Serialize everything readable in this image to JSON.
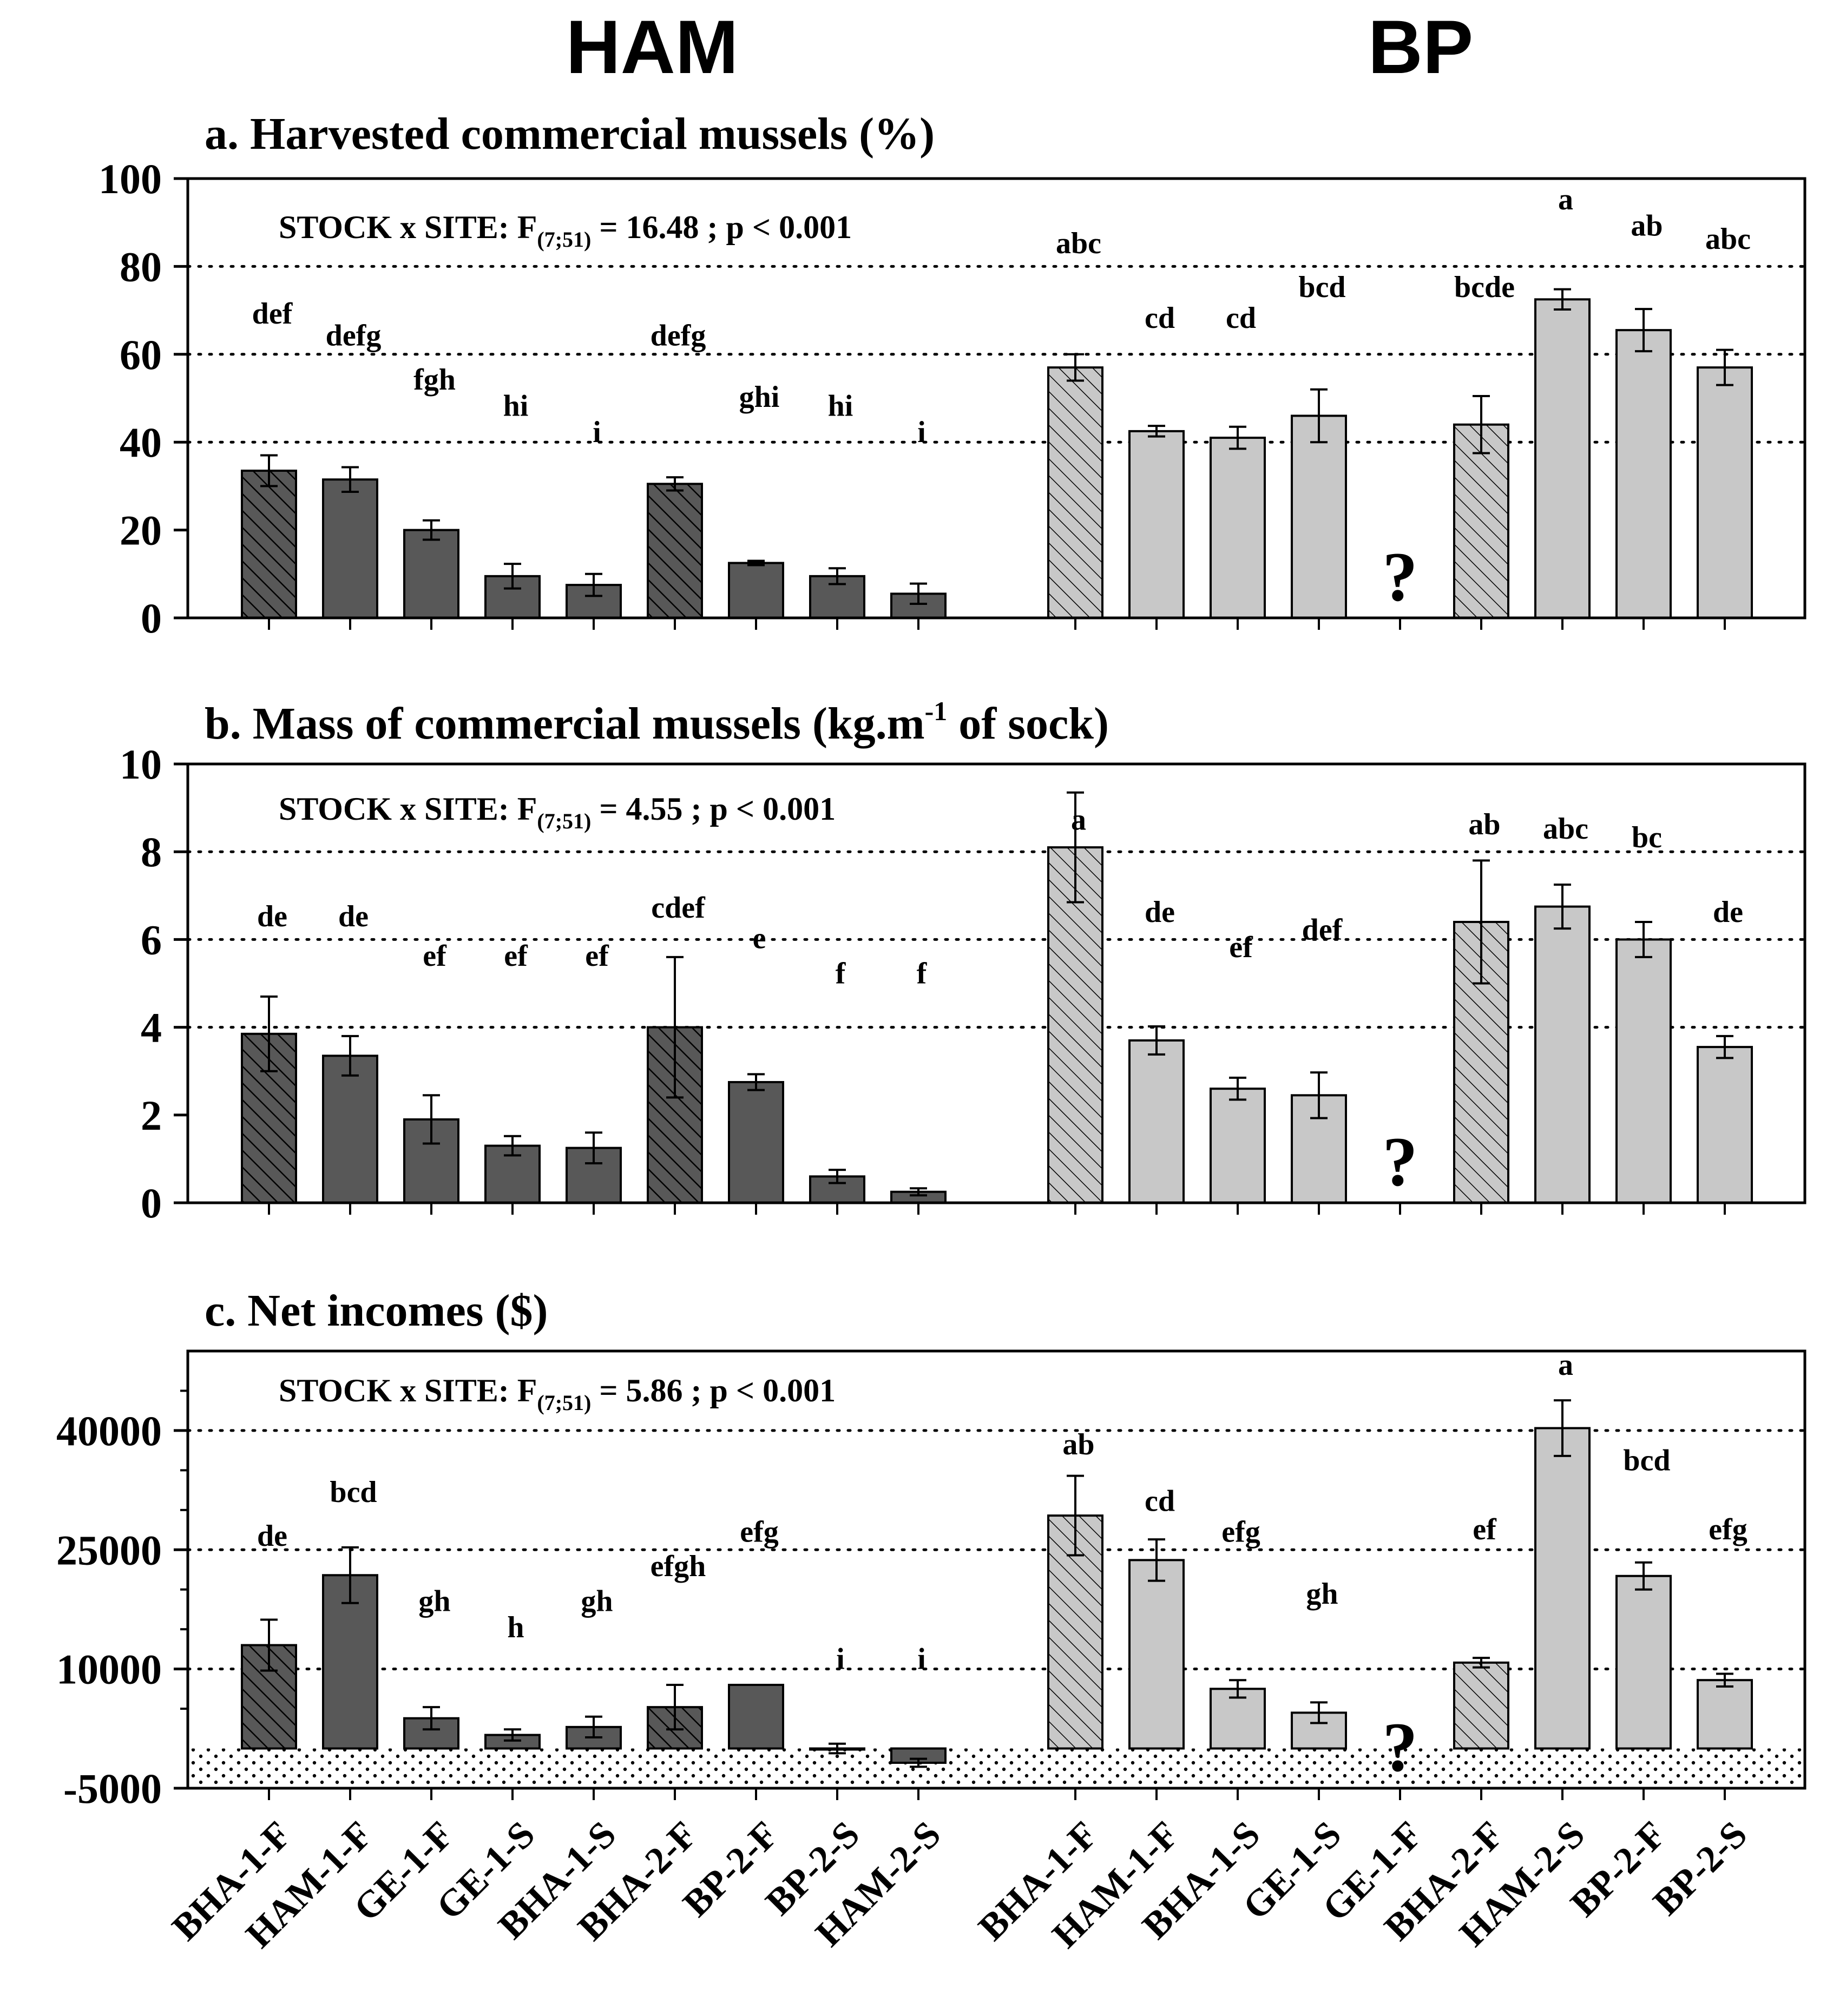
{
  "site_titles": {
    "left": "HAM",
    "right": "BP"
  },
  "colors": {
    "ham_bar": "#585858",
    "bp_bar": "#c8c8c8",
    "frame": "#000000"
  },
  "hatching": {
    "note": "hatched bars",
    "hatched_categories": [
      "BHA-1-F",
      "BHA-2-F"
    ]
  },
  "missing_marker": "?",
  "chart_data": [
    {
      "type": "bar",
      "panel": "a.",
      "title": "Harvested commercial mussels  (%)",
      "title_sup": "",
      "title_tail": "",
      "stat": {
        "label": "STOCK x SITE:",
        "f": "F",
        "df": "(7;51)",
        "value": "= 16.48 ; p < 0.001"
      },
      "ylim": [
        0,
        100
      ],
      "yticks": [
        0,
        20,
        40,
        60,
        80,
        100
      ],
      "ytick_labels": [
        "0",
        "20",
        "40",
        "60",
        "80",
        "100"
      ],
      "grid_values": [
        40,
        60,
        80
      ],
      "groups": [
        {
          "site": "HAM",
          "categories": [
            "BHA-1-F",
            "HAM-1-F",
            "GE-1-F",
            "GE-1-S",
            "BHA-1-S",
            "BHA-2-F",
            "BP-2-F",
            "BP-2-S",
            "HAM-2-S"
          ],
          "values": [
            33.5,
            31.5,
            20,
            9.5,
            7.5,
            30.5,
            12.5,
            9.5,
            5.5
          ],
          "errors": [
            3.5,
            2.8,
            2.2,
            2.8,
            2.5,
            1.5,
            0.5,
            1.8,
            2.3
          ],
          "letters": [
            "def",
            "defg",
            "fgh",
            "hi",
            "i",
            "defg",
            "ghi",
            "hi",
            "i"
          ],
          "letter_y": [
            67,
            62,
            52,
            46,
            40,
            62,
            48,
            46,
            40
          ]
        },
        {
          "site": "BP",
          "categories": [
            "BHA-1-F",
            "HAM-1-F",
            "BHA-1-S",
            "GE-1-S",
            "GE-1-F",
            "BHA-2-F",
            "HAM-2-S",
            "BP-2-F",
            "BP-2-S"
          ],
          "values": [
            57,
            42.5,
            41,
            46,
            null,
            44,
            72.5,
            65.5,
            57
          ],
          "errors": [
            3,
            1.2,
            2.5,
            6,
            null,
            6.5,
            2.3,
            4.8,
            4
          ],
          "letters": [
            "abc",
            "cd",
            "cd",
            "bcd",
            "?",
            "bcde",
            "a",
            "ab",
            "abc"
          ],
          "letter_y": [
            83,
            66,
            66,
            73,
            null,
            73,
            93,
            87,
            84
          ]
        }
      ]
    },
    {
      "type": "bar",
      "panel": "b.",
      "title": "Mass of commercial mussels  (kg.m",
      "title_sup": "-1",
      "title_tail": " of sock)",
      "stat": {
        "label": "STOCK x SITE:",
        "f": "F",
        "df": "(7;51)",
        "value": "= 4.55 ; p < 0.001"
      },
      "ylim": [
        0,
        10
      ],
      "yticks": [
        0,
        2,
        4,
        6,
        8,
        10
      ],
      "ytick_labels": [
        "0",
        "2",
        "4",
        "6",
        "8",
        "10"
      ],
      "grid_values": [
        4,
        6,
        8
      ],
      "groups": [
        {
          "site": "HAM",
          "categories": [
            "BHA-1-F",
            "HAM-1-F",
            "GE-1-F",
            "GE-1-S",
            "BHA-1-S",
            "BHA-2-F",
            "BP-2-F",
            "BP-2-S",
            "HAM-2-S"
          ],
          "values": [
            3.85,
            3.35,
            1.9,
            1.3,
            1.25,
            4.0,
            2.75,
            0.6,
            0.25
          ],
          "errors": [
            0.85,
            0.45,
            0.55,
            0.22,
            0.35,
            1.6,
            0.18,
            0.15,
            0.08
          ],
          "letters": [
            "de",
            "de",
            "ef",
            "ef",
            "ef",
            "cdef",
            "e",
            "f",
            "f"
          ],
          "letter_y": [
            6.3,
            6.3,
            5.4,
            5.4,
            5.4,
            6.5,
            5.8,
            5.0,
            5.0
          ]
        },
        {
          "site": "BP",
          "categories": [
            "BHA-1-F",
            "HAM-1-F",
            "BHA-1-S",
            "GE-1-S",
            "GE-1-F",
            "BHA-2-F",
            "HAM-2-S",
            "BP-2-F",
            "BP-2-S"
          ],
          "values": [
            8.1,
            3.7,
            2.6,
            2.45,
            null,
            6.4,
            6.75,
            6.0,
            3.55
          ],
          "errors": [
            1.25,
            0.32,
            0.25,
            0.52,
            null,
            1.4,
            0.5,
            0.4,
            0.25
          ],
          "letters": [
            "a",
            "de",
            "ef",
            "def",
            "?",
            "ab",
            "abc",
            "bc",
            "de"
          ],
          "letter_y": [
            8.5,
            6.4,
            5.6,
            6.0,
            null,
            8.4,
            8.3,
            8.1,
            6.4
          ]
        }
      ]
    },
    {
      "type": "bar",
      "panel": "c.",
      "title": "Net incomes  ($)",
      "title_sup": "",
      "title_tail": "",
      "stat": {
        "label": "STOCK x SITE:",
        "f": "F",
        "df": "(7;51)",
        "value": "= 5.86 ; p < 0.001"
      },
      "ylim": [
        -5000,
        50000
      ],
      "yticks": [
        -5000,
        10000,
        25000,
        40000
      ],
      "ytick_labels": [
        "-5000",
        "10000",
        "25000",
        "40000"
      ],
      "minor_ticks": [
        5000,
        15000,
        20000,
        30000,
        35000,
        45000
      ],
      "grid_values": [
        10000,
        25000,
        40000
      ],
      "negative_band": [
        -5000,
        0
      ],
      "groups": [
        {
          "site": "HAM",
          "categories": [
            "BHA-1-F",
            "HAM-1-F",
            "GE-1-F",
            "GE-1-S",
            "BHA-1-S",
            "BHA-2-F",
            "BP-2-F",
            "BP-2-S",
            "HAM-2-S"
          ],
          "values": [
            13000,
            21800,
            3800,
            1700,
            2700,
            5200,
            8000,
            0,
            -1800
          ],
          "errors": [
            3200,
            3500,
            1400,
            700,
            1300,
            2800,
            0,
            600,
            500
          ],
          "letters": [
            "de",
            "bcd",
            "gh",
            "h",
            "gh",
            "efgh",
            "efg",
            "i",
            "i"
          ],
          "letter_y": [
            25500,
            31000,
            17300,
            14000,
            17300,
            21700,
            26000,
            10000,
            10000
          ]
        },
        {
          "site": "BP",
          "categories": [
            "BHA-1-F",
            "HAM-1-F",
            "BHA-1-S",
            "GE-1-S",
            "GE-1-F",
            "BHA-2-F",
            "HAM-2-S",
            "BP-2-F",
            "BP-2-S"
          ],
          "values": [
            29300,
            23700,
            7500,
            4500,
            null,
            10800,
            40300,
            21700,
            8600
          ],
          "errors": [
            5000,
            2600,
            1100,
            1300,
            null,
            600,
            3500,
            1700,
            800
          ],
          "letters": [
            "ab",
            "cd",
            "efg",
            "gh",
            "?",
            "ef",
            "a",
            "bcd",
            "efg"
          ],
          "letter_y": [
            37000,
            29900,
            26000,
            18200,
            null,
            26300,
            47000,
            35000,
            26300
          ]
        }
      ]
    }
  ]
}
